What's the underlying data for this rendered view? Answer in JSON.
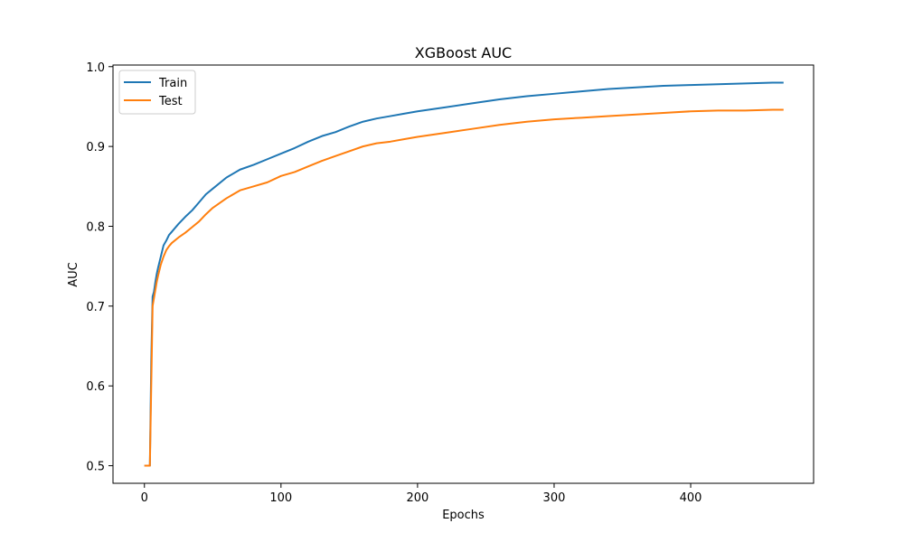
{
  "chart_data": {
    "type": "line",
    "title": "XGBoost AUC",
    "xlabel": "Epochs",
    "ylabel": "AUC",
    "xlim": [
      -23,
      490
    ],
    "ylim": [
      0.478,
      1.002
    ],
    "x_ticks": [
      0,
      100,
      200,
      300,
      400
    ],
    "x_tick_labels": [
      "0",
      "100",
      "200",
      "300",
      "400"
    ],
    "y_ticks": [
      0.5,
      0.6,
      0.7,
      0.8,
      0.9,
      1.0
    ],
    "y_tick_labels": [
      "0.5",
      "0.6",
      "0.7",
      "0.8",
      "0.9",
      "1.0"
    ],
    "grid": false,
    "legend": {
      "position": "upper-left",
      "entries": [
        "Train",
        "Test"
      ]
    },
    "series": [
      {
        "name": "Train",
        "color": "#1f77b4",
        "x": [
          0,
          1,
          2,
          3,
          4,
          5,
          6,
          7,
          8,
          9,
          10,
          12,
          14,
          16,
          18,
          20,
          25,
          30,
          35,
          40,
          45,
          50,
          60,
          70,
          80,
          90,
          100,
          110,
          120,
          130,
          140,
          150,
          160,
          170,
          180,
          190,
          200,
          220,
          240,
          260,
          280,
          300,
          320,
          340,
          360,
          380,
          400,
          420,
          440,
          460,
          468
        ],
        "y": [
          0.5,
          0.5,
          0.5,
          0.5,
          0.5,
          0.63,
          0.712,
          0.718,
          0.73,
          0.74,
          0.748,
          0.762,
          0.776,
          0.782,
          0.789,
          0.793,
          0.803,
          0.812,
          0.82,
          0.83,
          0.84,
          0.847,
          0.861,
          0.871,
          0.877,
          0.884,
          0.891,
          0.898,
          0.906,
          0.913,
          0.918,
          0.925,
          0.931,
          0.935,
          0.938,
          0.941,
          0.944,
          0.949,
          0.954,
          0.959,
          0.963,
          0.966,
          0.969,
          0.972,
          0.974,
          0.976,
          0.977,
          0.978,
          0.979,
          0.98,
          0.98
        ]
      },
      {
        "name": "Test",
        "color": "#ff7f0e",
        "x": [
          0,
          1,
          2,
          3,
          4,
          5,
          6,
          7,
          8,
          9,
          10,
          12,
          14,
          16,
          18,
          20,
          25,
          30,
          35,
          40,
          45,
          50,
          60,
          70,
          80,
          90,
          100,
          110,
          120,
          130,
          140,
          150,
          160,
          170,
          180,
          190,
          200,
          220,
          240,
          260,
          280,
          300,
          320,
          340,
          360,
          380,
          400,
          420,
          440,
          460,
          468
        ],
        "y": [
          0.5,
          0.5,
          0.5,
          0.5,
          0.5,
          0.6,
          0.7,
          0.71,
          0.72,
          0.73,
          0.738,
          0.752,
          0.762,
          0.77,
          0.775,
          0.779,
          0.786,
          0.792,
          0.799,
          0.806,
          0.815,
          0.823,
          0.835,
          0.845,
          0.85,
          0.855,
          0.863,
          0.868,
          0.875,
          0.882,
          0.888,
          0.894,
          0.9,
          0.904,
          0.906,
          0.909,
          0.912,
          0.917,
          0.922,
          0.927,
          0.931,
          0.934,
          0.936,
          0.938,
          0.94,
          0.942,
          0.944,
          0.945,
          0.945,
          0.946,
          0.946
        ]
      }
    ]
  }
}
